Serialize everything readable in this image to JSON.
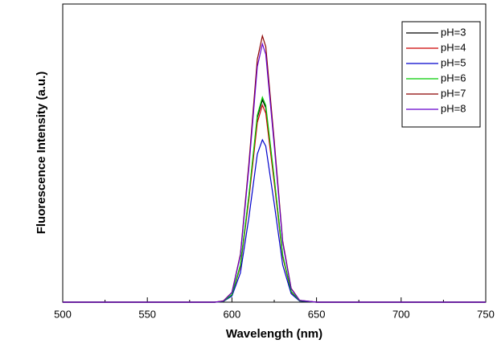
{
  "chart_data": {
    "type": "line",
    "x_label": "Wavelength (nm)",
    "y_label": "Fluorescence Intensity (a.u.)",
    "x": [
      500,
      580,
      590,
      595,
      600,
      605,
      610,
      615,
      618,
      620,
      625,
      630,
      635,
      640,
      650,
      750
    ],
    "series": [
      {
        "name": "pH=3",
        "color": "#000000",
        "values": [
          0,
          0,
          0,
          0.003,
          0.028,
          0.137,
          0.395,
          0.693,
          0.76,
          0.73,
          0.461,
          0.175,
          0.04,
          0.005,
          0,
          0
        ]
      },
      {
        "name": "pH=4",
        "color": "#cc0000",
        "values": [
          0,
          0,
          0,
          0.003,
          0.027,
          0.133,
          0.385,
          0.675,
          0.74,
          0.71,
          0.449,
          0.17,
          0.038,
          0.005,
          0,
          0
        ]
      },
      {
        "name": "pH=5",
        "color": "#0000cc",
        "values": [
          0,
          0,
          0,
          0.003,
          0.023,
          0.11,
          0.317,
          0.556,
          0.61,
          0.586,
          0.37,
          0.14,
          0.032,
          0.004,
          0,
          0
        ]
      },
      {
        "name": "pH=6",
        "color": "#00cc00",
        "values": [
          0,
          0,
          0,
          0.003,
          0.028,
          0.139,
          0.4,
          0.702,
          0.77,
          0.739,
          0.467,
          0.177,
          0.04,
          0.005,
          0,
          0
        ]
      },
      {
        "name": "pH=7",
        "color": "#8b0000",
        "values": [
          0,
          0,
          0,
          0.005,
          0.037,
          0.18,
          0.52,
          0.912,
          1,
          0.96,
          0.607,
          0.23,
          0.052,
          0.007,
          0,
          0
        ]
      },
      {
        "name": "pH=8",
        "color": "#6600cc",
        "values": [
          0,
          0,
          0,
          0.004,
          0.036,
          0.175,
          0.504,
          0.885,
          0.97,
          0.931,
          0.589,
          0.223,
          0.05,
          0.007,
          0,
          0
        ]
      }
    ],
    "xlim": [
      500,
      750
    ],
    "xticks": [
      500,
      550,
      600,
      650,
      700,
      750
    ],
    "ylim": [
      0,
      1.12
    ],
    "legend": "upper right"
  }
}
